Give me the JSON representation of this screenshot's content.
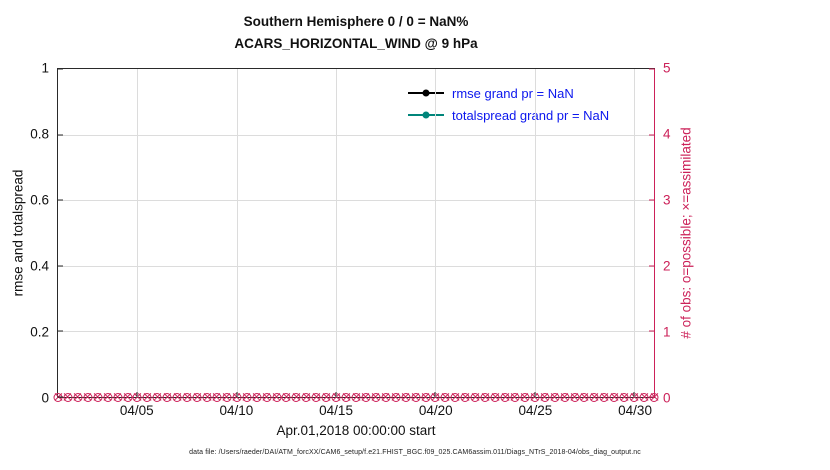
{
  "colors": {
    "crimson": "#cc2159",
    "teal": "#00857a",
    "legendblue": "#0b16ee",
    "rmse": "#000000"
  },
  "footer": "data file: /Users/raeder/DAI/ATM_forcXX/CAM6_setup/f.e21.FHIST_BGC.f09_025.CAM6assim.011/Diags_NTrS_2018-04/obs_diag_output.nc",
  "chart_data": {
    "type": "line",
    "title_line1": "Southern Hemisphere 0 / 0 = NaN%",
    "title_line2": "ACARS_HORIZONTAL_WIND @ 9 hPa",
    "xlabel": "Apr.01,2018 00:00:00 start",
    "grid": true,
    "legend_position": "upper center-right inside plot, no box",
    "x_axis": {
      "start": "Apr.01,2018 00:00:00",
      "range_days": [
        0,
        30
      ],
      "tick_days": [
        4,
        9,
        14,
        19,
        24,
        29
      ],
      "tick_labels": [
        "04/05",
        "04/10",
        "04/15",
        "04/20",
        "04/25",
        "04/30"
      ]
    },
    "y_left": {
      "label": "rmse and totalspread",
      "range": [
        0,
        1
      ],
      "tick_values": [
        0,
        0.2,
        0.4,
        0.6,
        0.8,
        1
      ],
      "tick_labels": [
        "0",
        "0.2",
        "0.4",
        "0.6",
        "0.8",
        "1"
      ]
    },
    "y_right": {
      "label": "# of obs: o=possible; ×=assimilated",
      "range": [
        0,
        5
      ],
      "tick_values": [
        0,
        1,
        2,
        3,
        4,
        5
      ],
      "tick_labels": [
        "0",
        "1",
        "2",
        "3",
        "4",
        "5"
      ]
    },
    "series": [
      {
        "name": "rmse",
        "label": "rmse grand pr = NaN",
        "color": "#000000",
        "values": "NaN (no curve plotted)"
      },
      {
        "name": "totalspread",
        "label": "totalspread grand pr = NaN",
        "color": "#00857a",
        "values": "NaN (no curve plotted)"
      }
    ],
    "obs": {
      "description": "# of obs possible (o) and assimilated (x); all values 0 along baseline",
      "value": 0,
      "marker_count": 61,
      "color": "#cc2159"
    }
  }
}
